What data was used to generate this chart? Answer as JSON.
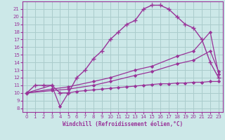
{
  "xlabel": "Windchill (Refroidissement éolien,°C)",
  "bg_color": "#cce8e8",
  "grid_color": "#aacccc",
  "line_color": "#993399",
  "xlim": [
    -0.5,
    23.5
  ],
  "ylim": [
    7.5,
    22.0
  ],
  "xticks": [
    0,
    1,
    2,
    3,
    4,
    5,
    6,
    7,
    8,
    9,
    10,
    11,
    12,
    13,
    14,
    15,
    16,
    17,
    18,
    19,
    20,
    21,
    22,
    23
  ],
  "yticks": [
    8,
    9,
    10,
    11,
    12,
    13,
    14,
    15,
    16,
    17,
    18,
    19,
    20,
    21
  ],
  "line1_x": [
    0,
    1,
    2,
    3,
    4,
    5,
    6,
    7,
    8,
    9,
    10,
    11,
    12,
    13,
    14,
    15,
    16,
    17,
    18,
    19,
    20,
    21,
    22,
    23
  ],
  "line1_y": [
    10,
    11,
    11,
    11,
    10,
    10,
    12,
    13,
    14.5,
    15.5,
    17,
    18,
    19,
    19.5,
    21,
    21.5,
    21.5,
    21,
    20,
    19,
    18.5,
    17,
    14,
    12
  ],
  "line2_x": [
    0,
    3,
    4,
    5,
    6,
    7,
    8,
    9,
    10,
    11,
    12,
    13,
    14,
    15,
    16,
    17,
    18,
    19,
    20,
    21,
    22,
    23
  ],
  "line2_y": [
    10,
    11,
    8.2,
    10,
    10.2,
    10.3,
    10.4,
    10.5,
    10.6,
    10.7,
    10.8,
    10.9,
    11.0,
    11.1,
    11.2,
    11.2,
    11.3,
    11.3,
    11.4,
    11.4,
    11.5,
    11.5
  ],
  "line3_x": [
    0,
    3,
    5,
    8,
    10,
    13,
    15,
    18,
    20,
    22,
    23
  ],
  "line3_y": [
    10,
    10.5,
    10.8,
    11.5,
    12.0,
    13.0,
    13.5,
    14.8,
    15.5,
    18.0,
    12.5
  ],
  "line4_x": [
    0,
    3,
    5,
    8,
    10,
    13,
    15,
    18,
    20,
    22,
    23
  ],
  "line4_y": [
    10,
    10.3,
    10.5,
    11.0,
    11.5,
    12.3,
    12.8,
    13.8,
    14.3,
    15.5,
    12.8
  ]
}
